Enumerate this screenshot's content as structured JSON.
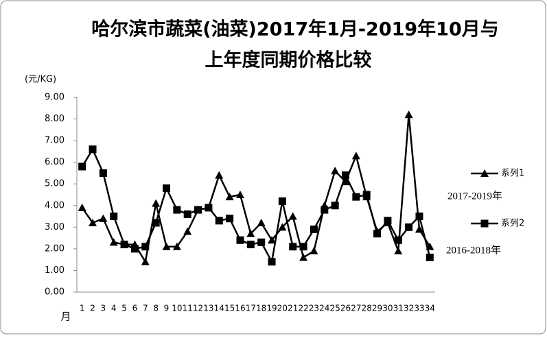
{
  "chart_data": {
    "type": "line",
    "title": [
      "哈尔滨市蔬菜(油菜)2017年1月-2019年10月与",
      "上年度同期价格比较"
    ],
    "y_label": "(元/KG)",
    "x_label": "月",
    "categories": [
      "1",
      "2",
      "3",
      "4",
      "5",
      "6",
      "7",
      "8",
      "9",
      "10",
      "11",
      "12",
      "13",
      "14",
      "15",
      "16",
      "17",
      "18",
      "19",
      "20",
      "21",
      "22",
      "23",
      "24",
      "25",
      "26",
      "27",
      "28",
      "29",
      "30",
      "31",
      "32",
      "33",
      "34"
    ],
    "series": [
      {
        "name": "系列1",
        "color": "#000000",
        "marker": "triangle",
        "values": [
          3.9,
          3.2,
          3.4,
          2.3,
          2.2,
          2.2,
          1.4,
          4.1,
          2.1,
          2.1,
          2.8,
          3.8,
          3.9,
          5.4,
          4.4,
          4.5,
          2.7,
          3.2,
          2.4,
          3.0,
          3.5,
          1.6,
          1.9,
          4.0,
          5.6,
          5.1,
          6.3,
          4.4,
          2.8,
          3.2,
          1.9,
          8.2,
          2.9,
          2.1
        ]
      },
      {
        "name": "系列2",
        "color": "#000000",
        "marker": "square",
        "values": [
          5.8,
          6.6,
          5.5,
          3.5,
          2.2,
          2.0,
          2.1,
          3.2,
          4.8,
          3.8,
          3.6,
          3.8,
          3.9,
          3.3,
          3.4,
          2.4,
          2.2,
          2.3,
          1.4,
          4.2,
          2.1,
          2.1,
          2.9,
          3.8,
          4.0,
          5.4,
          4.4,
          4.5,
          2.7,
          3.3,
          2.4,
          3.0,
          3.5,
          1.6
        ]
      }
    ],
    "annotations": [
      "2017-2019年",
      "2016-2018年"
    ],
    "ylim": [
      0,
      9
    ],
    "yticks": [
      {
        "value": 0,
        "label": "0.00"
      },
      {
        "value": 1,
        "label": "1.00"
      },
      {
        "value": 2,
        "label": "2.00"
      },
      {
        "value": 3,
        "label": "3.00"
      },
      {
        "value": 4,
        "label": "4.00"
      },
      {
        "value": 5,
        "label": "5.00"
      },
      {
        "value": 6,
        "label": "6.00"
      },
      {
        "value": 7,
        "label": "7.00"
      },
      {
        "value": 8,
        "label": "8.00"
      },
      {
        "value": 9,
        "label": "9.00"
      }
    ],
    "grid": false
  }
}
